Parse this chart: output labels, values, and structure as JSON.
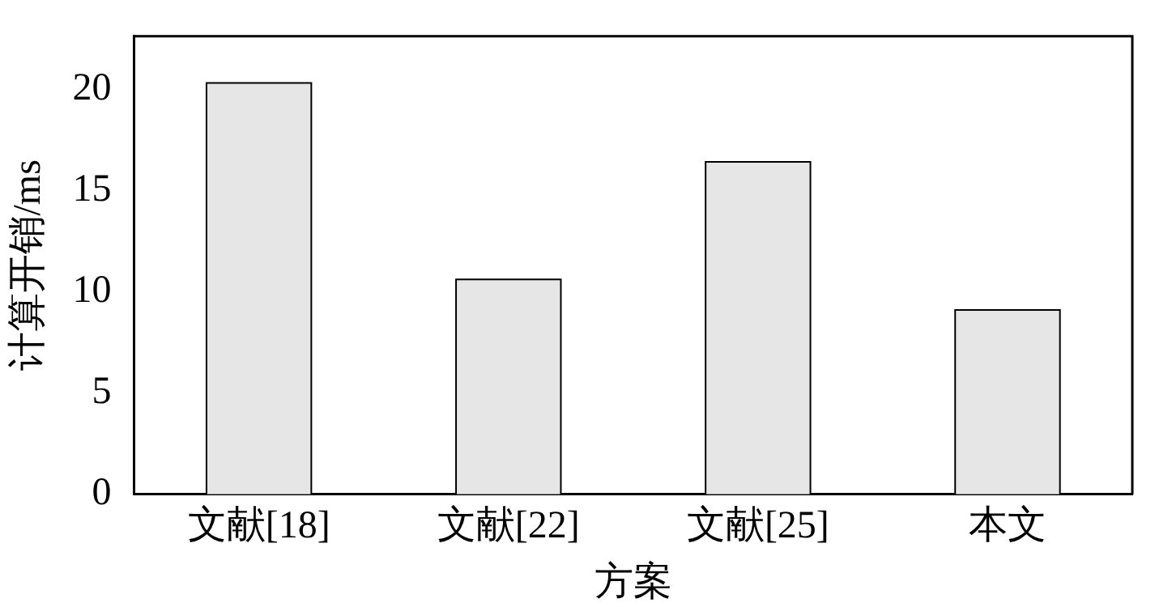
{
  "chart_data": {
    "type": "bar",
    "xlabel": "方案",
    "ylabel": "计算开销/ms",
    "categories": [
      "文献[18]",
      "文献[22]",
      "文献[25]",
      "本文"
    ],
    "values": [
      20.3,
      10.6,
      16.4,
      9.1
    ],
    "color": "#e6e6e6",
    "ylim": [
      0,
      22.6
    ],
    "yticks": [
      0,
      5,
      10,
      15,
      20
    ],
    "grid": false,
    "legend": false
  }
}
